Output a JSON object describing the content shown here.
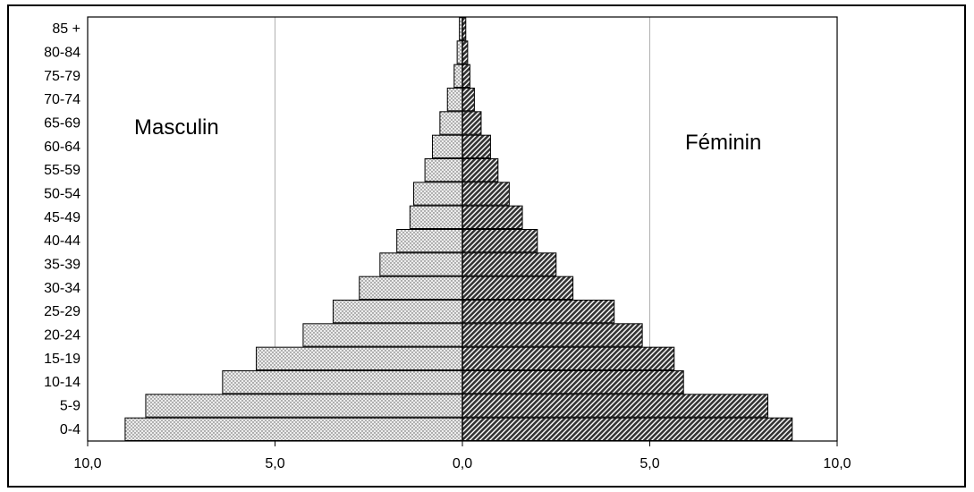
{
  "chart_data": {
    "type": "bar",
    "orientation": "horizontal",
    "subtype": "population-pyramid",
    "categories": [
      "0-4",
      "5-9",
      "10-14",
      "15-19",
      "20-24",
      "25-29",
      "30-34",
      "35-39",
      "40-44",
      "45-49",
      "50-54",
      "55-59",
      "60-64",
      "65-69",
      "70-74",
      "75-79",
      "80-84",
      "85 +"
    ],
    "series": [
      {
        "name": "Masculin",
        "side": "left",
        "values": [
          9.0,
          8.45,
          6.4,
          5.5,
          4.25,
          3.45,
          2.75,
          2.2,
          1.75,
          1.4,
          1.3,
          1.0,
          0.8,
          0.6,
          0.4,
          0.22,
          0.14,
          0.08
        ]
      },
      {
        "name": "Féminin",
        "side": "right",
        "values": [
          8.8,
          8.15,
          5.9,
          5.65,
          4.8,
          4.05,
          2.95,
          2.5,
          2.0,
          1.6,
          1.25,
          0.95,
          0.75,
          0.5,
          0.32,
          0.2,
          0.14,
          0.09
        ]
      }
    ],
    "xlim": [
      0,
      10
    ],
    "x_ticks": [
      "10,0",
      "5,0",
      "0,0",
      "5,0",
      "10,0"
    ],
    "x_tick_values": [
      -10,
      -5,
      0,
      5,
      10
    ],
    "grid": "vertical",
    "legend": "none",
    "labels": {
      "left": "Masculin",
      "right": "Féminin"
    },
    "colors": {
      "male_fill": "#e6e6e6",
      "female_fill": "#3a3a3a",
      "bar_stroke": "#000000",
      "grid": "#b0b0b0"
    }
  }
}
